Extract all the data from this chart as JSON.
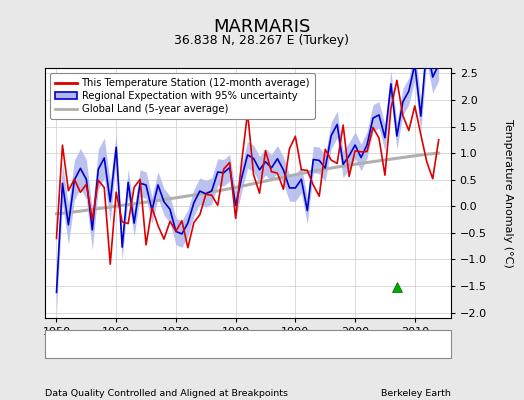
{
  "title": "MARMARIS",
  "subtitle": "36.838 N, 28.267 E (Turkey)",
  "xlabel_left": "Data Quality Controlled and Aligned at Breakpoints",
  "xlabel_right": "Berkeley Earth",
  "ylabel": "Temperature Anomaly (°C)",
  "xlim": [
    1948,
    2016
  ],
  "ylim": [
    -2.1,
    2.6
  ],
  "yticks": [
    -2,
    -1.5,
    -1,
    -0.5,
    0,
    0.5,
    1,
    1.5,
    2,
    2.5
  ],
  "xticks": [
    1950,
    1960,
    1970,
    1980,
    1990,
    2000,
    2010
  ],
  "background_color": "#e8e8e8",
  "plot_bg_color": "#ffffff",
  "station_color": "#dd0000",
  "regional_color": "#0000cc",
  "regional_fill_color": "#b0b8ee",
  "global_color": "#b0b0b0",
  "grid_color": "#cccccc",
  "title_fontsize": 13,
  "subtitle_fontsize": 9,
  "record_gap_x": 2007,
  "record_gap_y": -1.52
}
